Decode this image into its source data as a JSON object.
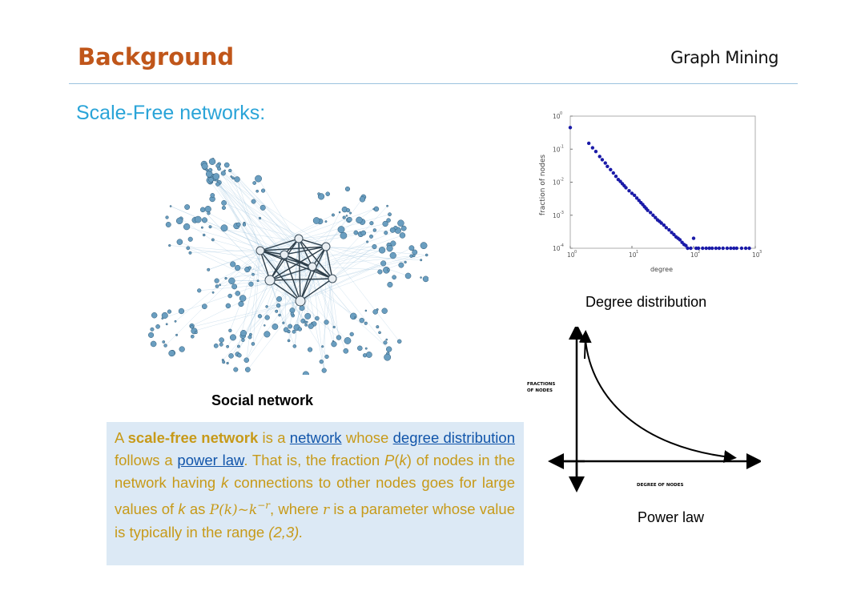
{
  "header": {
    "title": "Background",
    "course": "Graph Mining"
  },
  "subtitle": "Scale-Free networks:",
  "captions": {
    "social_network": "Social network",
    "degree_distribution": "Degree distribution",
    "power_law": "Power law"
  },
  "paragraph": {
    "p1": "A ",
    "term": "scale-free network",
    "p2": " is a ",
    "link_network": "network",
    "p3": " whose ",
    "link_degree_distribution": "degree distribution",
    "p4": " follows a ",
    "link_power_law": "power law",
    "p5": ". That is, the fraction ",
    "pk": "P",
    "k_open": "(",
    "k_var": "k",
    "k_close": ")",
    "p6": " of nodes in the network having ",
    "k2": "k",
    "p7": " connections to other nodes goes for large values of ",
    "k3": "k",
    "p8": " as ",
    "formula": "P(k)~k",
    "formula_exp": "−r",
    "p9": ", where ",
    "r": "r",
    "p10": " is a parameter whose value is typically in the range ",
    "range": "(2,3)."
  },
  "powerlaw_diagram": {
    "y_label_line1": "FRACTIONS",
    "y_label_line2": "OF NODES",
    "x_label": "DEGREE OF NODES"
  },
  "chart_data": {
    "type": "scatter",
    "title": "",
    "xlabel": "degree",
    "ylabel": "fraction of nodes",
    "x_scale": "log",
    "y_scale": "log",
    "xlim": [
      1,
      1000
    ],
    "ylim": [
      0.0001,
      1
    ],
    "x_ticks": [
      "10",
      "10",
      "10",
      "10"
    ],
    "x_tick_exponents": [
      "0",
      "1",
      "2",
      "3"
    ],
    "y_ticks": [
      "10",
      "10",
      "10",
      "10",
      "10"
    ],
    "y_tick_exponents": [
      "0",
      "-1",
      "-2",
      "-3",
      "-4"
    ],
    "color": "#1a1aa8",
    "series": [
      {
        "x": [
          1,
          2,
          2.3,
          2.6,
          3,
          3.3,
          3.7,
          4,
          4.5,
          5,
          5.5,
          6,
          6.5,
          7,
          7.5,
          8,
          9,
          10,
          11,
          12,
          13,
          14,
          15,
          16,
          17,
          18,
          20,
          22,
          24,
          26,
          28,
          30,
          33,
          36,
          40,
          44,
          48,
          52,
          56,
          60,
          65,
          70,
          75,
          80,
          90,
          100,
          110,
          120,
          140,
          160,
          180,
          200,
          230,
          260,
          300,
          350,
          400,
          450,
          500,
          600,
          700,
          800
        ],
        "y": [
          0.45,
          0.15,
          0.11,
          0.085,
          0.06,
          0.048,
          0.038,
          0.03,
          0.024,
          0.019,
          0.015,
          0.012,
          0.0105,
          0.009,
          0.0078,
          0.0068,
          0.0055,
          0.0046,
          0.004,
          0.0033,
          0.0028,
          0.0024,
          0.0021,
          0.0018,
          0.0016,
          0.0014,
          0.0012,
          0.001,
          0.00085,
          0.00072,
          0.00065,
          0.00058,
          0.0005,
          0.00042,
          0.00036,
          0.0003,
          0.00026,
          0.00022,
          0.0002,
          0.00018,
          0.00015,
          0.00013,
          0.00012,
          0.0001,
          0.0001,
          0.0002,
          0.0001,
          0.0001,
          0.0001,
          0.0001,
          0.0001,
          0.0001,
          0.0001,
          0.0001,
          0.0001,
          0.0001,
          0.0001,
          0.0001,
          0.0001,
          0.0001,
          0.0001,
          0.0001
        ]
      }
    ]
  }
}
